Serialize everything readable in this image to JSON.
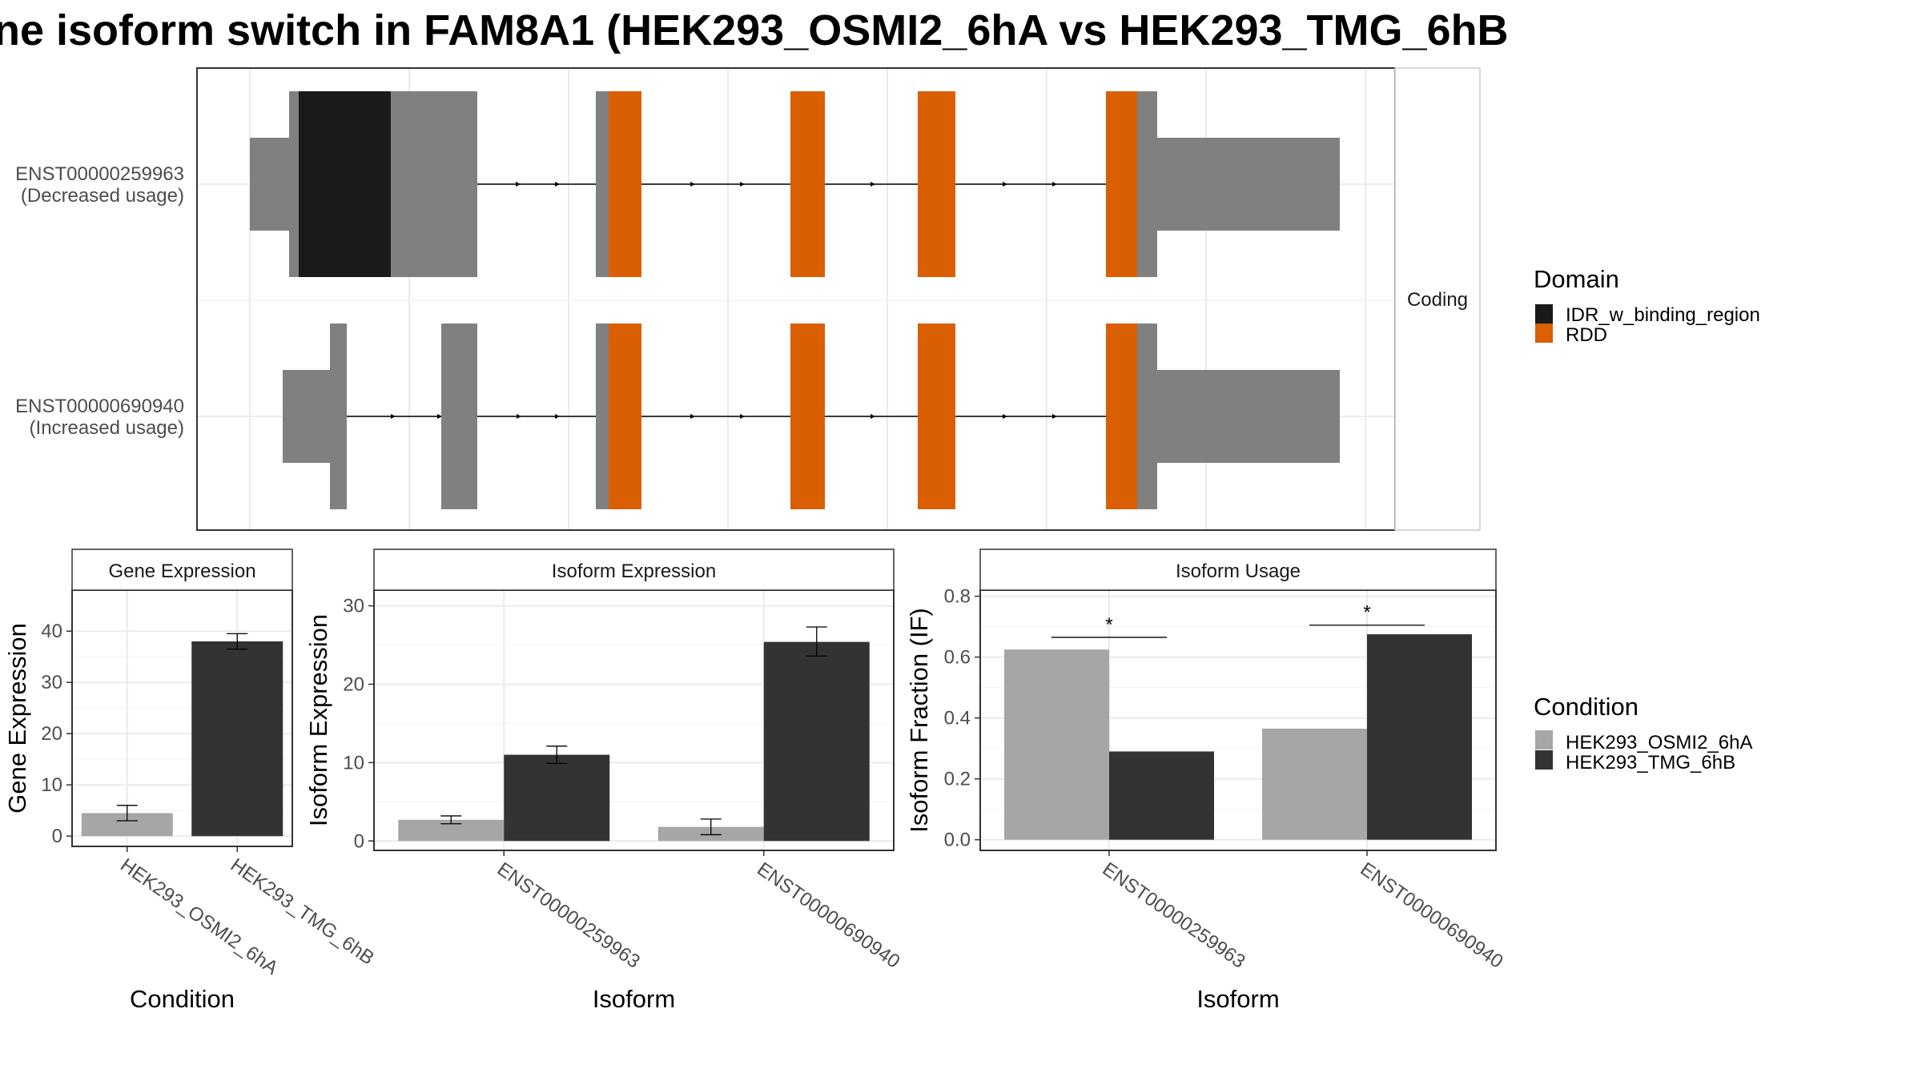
{
  "title": "ne isoform switch in FAM8A1 (HEK293_OSMI2_6hA vs HEK293_TMG_6hB",
  "legends": {
    "domain": {
      "title": "Domain",
      "items": [
        {
          "label": "IDR_w_binding_region",
          "color": "#1a1a1a"
        },
        {
          "label": "RDD",
          "color": "#d95f02"
        }
      ]
    },
    "condition": {
      "title": "Condition",
      "items": [
        {
          "label": "HEK293_OSMI2_6hA",
          "color": "#a6a6a6"
        },
        {
          "label": "HEK293_TMG_6hB",
          "color": "#333333"
        }
      ]
    }
  },
  "chart_data": [
    {
      "type": "transcript_structure",
      "facet_label": "Coding",
      "tracks": [
        {
          "id": "ENST00000259963",
          "label": "ENST00000259963",
          "sublabel": "(Decreased usage)"
        },
        {
          "id": "ENST00000690940",
          "label": "ENST00000690940",
          "sublabel": "(Increased usage)"
        }
      ],
      "colors": {
        "exon": "#808080",
        "line": "#000000"
      }
    },
    {
      "type": "bar",
      "title": "Gene Expression",
      "xlabel": "Condition",
      "ylabel": "Gene Expression",
      "ylim": [
        -2,
        48
      ],
      "yticks": [
        0,
        10,
        20,
        30,
        40
      ],
      "categories": [
        "HEK293_OSMI2_6hA",
        "HEK293_TMG_6hB"
      ],
      "values": [
        4.5,
        38
      ],
      "errors": [
        [
          3,
          6
        ],
        [
          36.5,
          39.5
        ]
      ],
      "colors": [
        "#a6a6a6",
        "#333333"
      ]
    },
    {
      "type": "bar",
      "title": "Isoform Expression",
      "xlabel": "Isoform",
      "ylabel": "Isoform Expression",
      "ylim": [
        -1.2,
        32
      ],
      "yticks": [
        0,
        10,
        20,
        30
      ],
      "categories": [
        "ENST00000259963",
        "ENST00000690940"
      ],
      "series": [
        {
          "values": [
            2.7,
            1.8
          ],
          "errors": [
            [
              2.2,
              3.2
            ],
            [
              0.8,
              2.8
            ]
          ],
          "color": "#a6a6a6"
        },
        {
          "values": [
            11.0,
            25.4
          ],
          "errors": [
            [
              9.9,
              12.1
            ],
            [
              23.6,
              27.3
            ]
          ],
          "color": "#333333"
        }
      ]
    },
    {
      "type": "bar",
      "title": "Isoform Usage",
      "xlabel": "Isoform",
      "ylabel": "Isoform Fraction (IF)",
      "ylim": [
        -0.035,
        0.82
      ],
      "yticks": [
        0.0,
        0.2,
        0.4,
        0.6,
        0.8
      ],
      "ytick_labels": [
        "0.0",
        "0.2",
        "0.4",
        "0.6",
        "0.8"
      ],
      "categories": [
        "ENST00000259963",
        "ENST00000690940"
      ],
      "series": [
        {
          "values": [
            0.625,
            0.365
          ],
          "color": "#a6a6a6"
        },
        {
          "values": [
            0.29,
            0.675
          ],
          "color": "#333333"
        }
      ],
      "significance": [
        {
          "category": "ENST00000259963",
          "label": "*",
          "y": 0.665
        },
        {
          "category": "ENST00000690940",
          "label": "*",
          "y": 0.705
        }
      ]
    }
  ]
}
